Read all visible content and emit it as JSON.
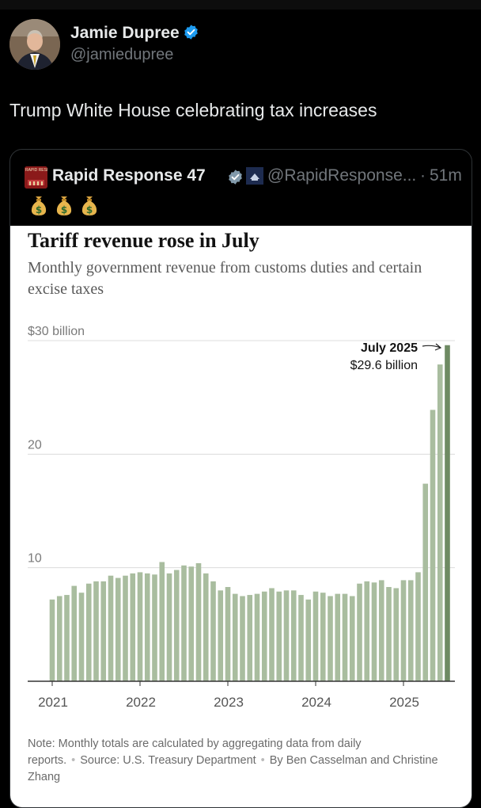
{
  "author": {
    "name": "Jamie Dupree",
    "handle": "@jamiedupree"
  },
  "tweet_text": "Trump White House celebrating tax increases",
  "quoted": {
    "name": "Rapid Response 47",
    "handle": "@RapidResponse...",
    "separator": "·",
    "time": "51m",
    "emojis": [
      "money-bag",
      "money-bag",
      "money-bag"
    ],
    "logo_text": "RAPID RESPONSE"
  },
  "colors": {
    "bar": "#a9bd9f",
    "bar_highlight": "#6e8a63",
    "verified": "#1d9bf0",
    "verified_gray": "#829aab"
  },
  "chart": {
    "title": "Tariff revenue rose in July",
    "subtitle": "Monthly government revenue from customs duties and certain excise taxes",
    "note": "Note: Monthly totals are calculated by aggregating data from daily reports.",
    "source": "Source: U.S. Treasury Department",
    "byline": "By Ben Casselman and Christine Zhang",
    "annotation_label": "July 2025",
    "annotation_value": "$29.6 billion"
  },
  "chart_data": {
    "type": "bar",
    "title": "Tariff revenue rose in July",
    "subtitle": "Monthly government revenue from customs duties and certain excise taxes",
    "ylabel": "$ billion",
    "ylim": [
      0,
      30
    ],
    "y_ticks": [
      {
        "value": 10,
        "label": "10"
      },
      {
        "value": 20,
        "label": "20"
      },
      {
        "value": 30,
        "label": "$30 billion"
      }
    ],
    "x_tick_labels": [
      {
        "index": 0,
        "label": "2021"
      },
      {
        "index": 12,
        "label": "2022"
      },
      {
        "index": 24,
        "label": "2023"
      },
      {
        "index": 36,
        "label": "2024"
      },
      {
        "index": 48,
        "label": "2025"
      }
    ],
    "highlight_index": 54,
    "categories": [
      "Jan 2021",
      "Feb 2021",
      "Mar 2021",
      "Apr 2021",
      "May 2021",
      "Jun 2021",
      "Jul 2021",
      "Aug 2021",
      "Sep 2021",
      "Oct 2021",
      "Nov 2021",
      "Dec 2021",
      "Jan 2022",
      "Feb 2022",
      "Mar 2022",
      "Apr 2022",
      "May 2022",
      "Jun 2022",
      "Jul 2022",
      "Aug 2022",
      "Sep 2022",
      "Oct 2022",
      "Nov 2022",
      "Dec 2022",
      "Jan 2023",
      "Feb 2023",
      "Mar 2023",
      "Apr 2023",
      "May 2023",
      "Jun 2023",
      "Jul 2023",
      "Aug 2023",
      "Sep 2023",
      "Oct 2023",
      "Nov 2023",
      "Dec 2023",
      "Jan 2024",
      "Feb 2024",
      "Mar 2024",
      "Apr 2024",
      "May 2024",
      "Jun 2024",
      "Jul 2024",
      "Aug 2024",
      "Sep 2024",
      "Oct 2024",
      "Nov 2024",
      "Dec 2024",
      "Jan 2025",
      "Feb 2025",
      "Mar 2025",
      "Apr 2025",
      "May 2025",
      "Jun 2025",
      "Jul 2025"
    ],
    "values": [
      7.2,
      7.5,
      7.6,
      8.4,
      7.8,
      8.6,
      8.8,
      8.8,
      9.3,
      9.1,
      9.3,
      9.5,
      9.6,
      9.5,
      9.4,
      10.5,
      9.5,
      9.8,
      10.2,
      10.1,
      10.4,
      9.5,
      8.8,
      8.0,
      8.3,
      7.7,
      7.5,
      7.6,
      7.7,
      7.9,
      8.2,
      7.9,
      8.0,
      8.0,
      7.6,
      7.2,
      7.9,
      7.8,
      7.5,
      7.7,
      7.7,
      7.5,
      8.6,
      8.8,
      8.7,
      8.9,
      8.3,
      8.2,
      8.9,
      8.9,
      9.6,
      17.4,
      23.9,
      27.9,
      29.6
    ]
  }
}
